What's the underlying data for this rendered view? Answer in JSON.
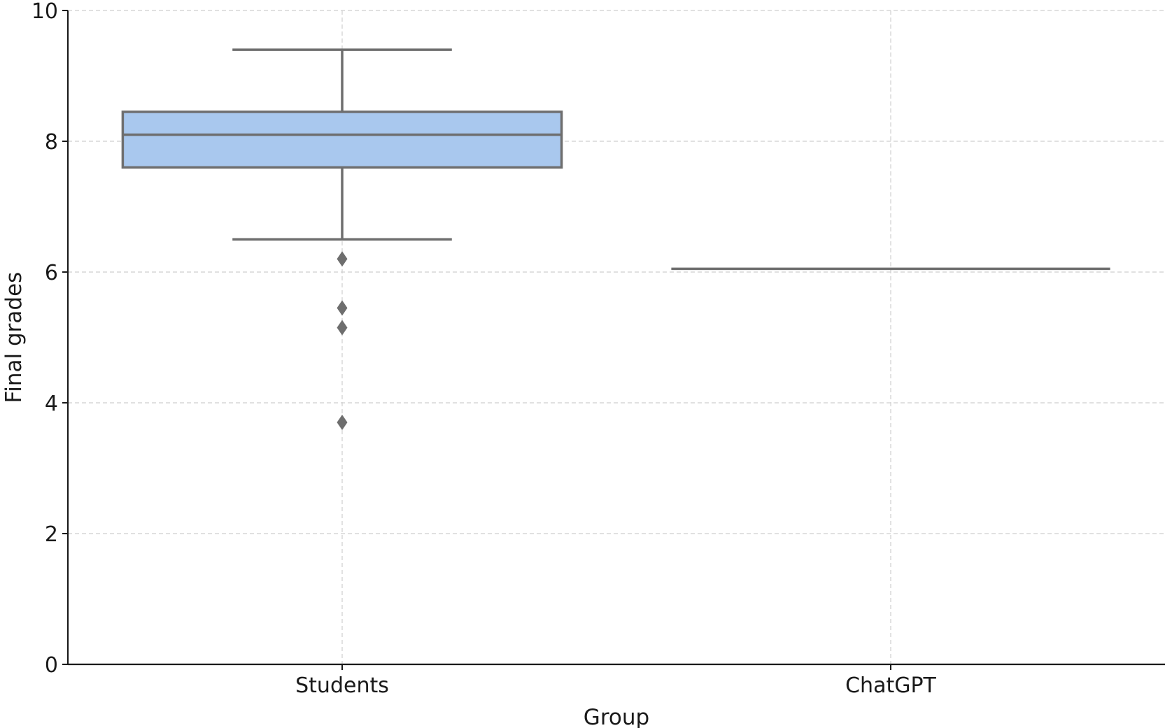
{
  "chart_data": {
    "type": "boxplot",
    "title": "",
    "xlabel": "Group",
    "ylabel": "Final grades",
    "ylim": [
      0,
      10
    ],
    "yticks": [
      "0",
      "2",
      "4",
      "6",
      "8",
      "10"
    ],
    "categories": [
      "Students",
      "ChatGPT"
    ],
    "grid": true,
    "box_color": "#a9c8ee",
    "line_color": "#6e6e6e",
    "boxes": [
      {
        "name": "Students",
        "whisker_low": 6.5,
        "q1": 7.6,
        "median": 8.1,
        "q3": 8.45,
        "whisker_high": 9.4,
        "outliers": [
          6.2,
          5.45,
          5.15,
          3.7
        ]
      },
      {
        "name": "ChatGPT",
        "whisker_low": 6.05,
        "q1": 6.05,
        "median": 6.05,
        "q3": 6.05,
        "whisker_high": 6.05,
        "outliers": []
      }
    ]
  }
}
